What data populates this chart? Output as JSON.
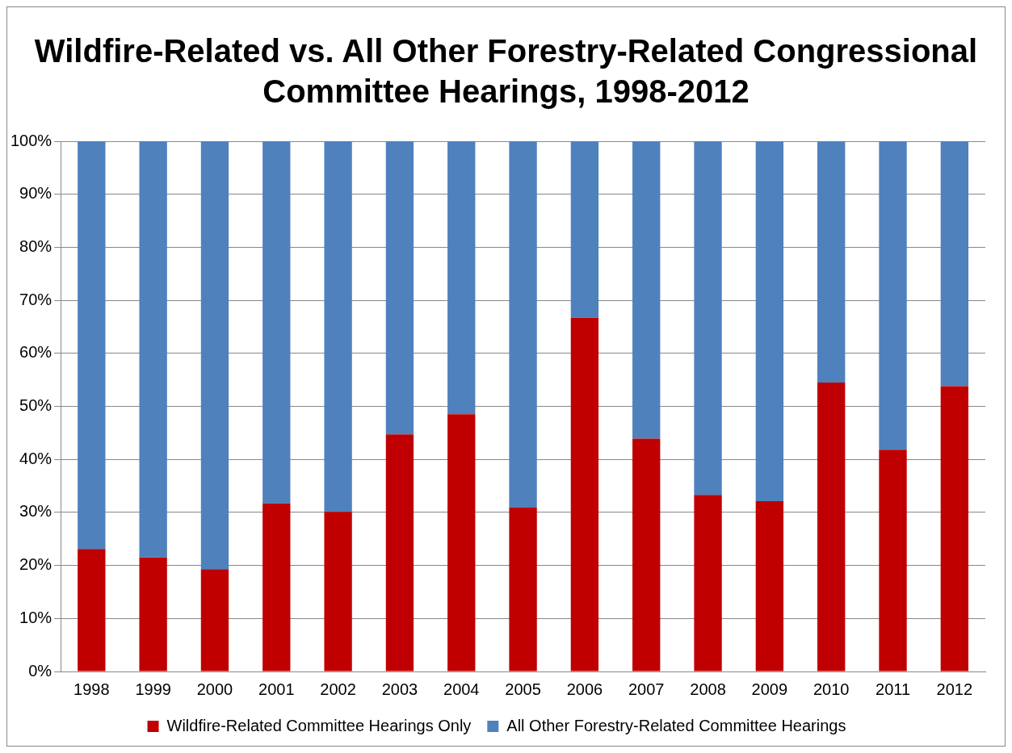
{
  "chart_data": {
    "type": "bar",
    "title": "Wildfire-Related vs. All Other Forestry-Related Congressional Committee Hearings, 1998-2012",
    "categories": [
      "1998",
      "1999",
      "2000",
      "2001",
      "2002",
      "2003",
      "2004",
      "2005",
      "2006",
      "2007",
      "2008",
      "2009",
      "2010",
      "2011",
      "2012"
    ],
    "stacked": true,
    "grid": "y",
    "legend": "bottom",
    "ylim": [
      0,
      100
    ],
    "yticks": [
      {
        "value": 0,
        "label": "0%"
      },
      {
        "value": 10,
        "label": "10%"
      },
      {
        "value": 20,
        "label": "20%"
      },
      {
        "value": 30,
        "label": "30%"
      },
      {
        "value": 40,
        "label": "40%"
      },
      {
        "value": 50,
        "label": "50%"
      },
      {
        "value": 60,
        "label": "60%"
      },
      {
        "value": 70,
        "label": "70%"
      },
      {
        "value": 80,
        "label": "80%"
      },
      {
        "value": 90,
        "label": "90%"
      },
      {
        "value": 100,
        "label": "100%"
      }
    ],
    "series": [
      {
        "name": "Wildfire-Related Committee Hearings Only",
        "color": "#c00000",
        "values": [
          23.1,
          21.5,
          19.3,
          31.7,
          30.1,
          44.7,
          48.5,
          30.9,
          66.7,
          43.9,
          33.3,
          32.1,
          54.5,
          41.8,
          53.8
        ]
      },
      {
        "name": "All Other Forestry-Related Committee Hearings",
        "color": "#4f81bd",
        "values": [
          76.9,
          78.5,
          80.7,
          68.3,
          69.9,
          55.3,
          51.5,
          69.1,
          33.3,
          56.1,
          66.7,
          67.9,
          45.5,
          58.2,
          46.2
        ]
      }
    ]
  }
}
